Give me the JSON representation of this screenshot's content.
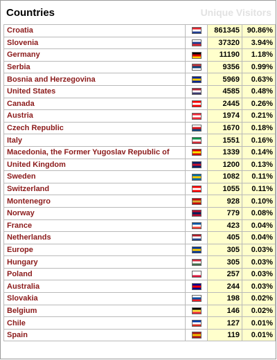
{
  "header": {
    "title": "Countries",
    "right_label": "Unique Visitors"
  },
  "rows": [
    {
      "country": "Croatia",
      "visitors": "861345",
      "percent": "90.86%",
      "flag_icon": "croatia-flag-icon",
      "flag_colors": [
        "#e0262f",
        "#ffffff",
        "#1f3c8f"
      ]
    },
    {
      "country": "Slovenia",
      "visitors": "37320",
      "percent": "3.94%",
      "flag_icon": "slovenia-flag-icon",
      "flag_colors": [
        "#ffffff",
        "#1f3c8f",
        "#e0262f"
      ]
    },
    {
      "country": "Germany",
      "visitors": "11190",
      "percent": "1.18%",
      "flag_icon": "germany-flag-icon",
      "flag_colors": [
        "#000000",
        "#dd0000",
        "#ffce00"
      ]
    },
    {
      "country": "Serbia",
      "visitors": "9356",
      "percent": "0.99%",
      "flag_icon": "serbia-flag-icon",
      "flag_colors": [
        "#c6363c",
        "#0c4076",
        "#ffffff"
      ]
    },
    {
      "country": "Bosnia and Herzegovina",
      "visitors": "5969",
      "percent": "0.63%",
      "flag_icon": "bosnia-flag-icon",
      "flag_colors": [
        "#002395",
        "#fecb00",
        "#002395"
      ]
    },
    {
      "country": "United States",
      "visitors": "4585",
      "percent": "0.48%",
      "flag_icon": "usa-flag-icon",
      "flag_colors": [
        "#b22234",
        "#ffffff",
        "#3c3b6e"
      ]
    },
    {
      "country": "Canada",
      "visitors": "2445",
      "percent": "0.26%",
      "flag_icon": "canada-flag-icon",
      "flag_colors": [
        "#ff0000",
        "#ffffff",
        "#ff0000"
      ]
    },
    {
      "country": "Austria",
      "visitors": "1974",
      "percent": "0.21%",
      "flag_icon": "austria-flag-icon",
      "flag_colors": [
        "#ed2939",
        "#ffffff",
        "#ed2939"
      ]
    },
    {
      "country": "Czech Republic",
      "visitors": "1670",
      "percent": "0.18%",
      "flag_icon": "czech-flag-icon",
      "flag_colors": [
        "#ffffff",
        "#d7141a",
        "#11457e"
      ]
    },
    {
      "country": "Italy",
      "visitors": "1551",
      "percent": "0.16%",
      "flag_icon": "italy-flag-icon",
      "flag_colors": [
        "#009246",
        "#ffffff",
        "#ce2b37"
      ]
    },
    {
      "country": "Macedonia, the Former Yugoslav Republic of",
      "visitors": "1339",
      "percent": "0.14%",
      "flag_icon": "macedonia-flag-icon",
      "flag_colors": [
        "#d20000",
        "#ffe600",
        "#d20000"
      ]
    },
    {
      "country": "United Kingdom",
      "visitors": "1200",
      "percent": "0.13%",
      "flag_icon": "uk-flag-icon",
      "flag_colors": [
        "#012169",
        "#c8102e",
        "#012169"
      ]
    },
    {
      "country": "Sweden",
      "visitors": "1082",
      "percent": "0.11%",
      "flag_icon": "sweden-flag-icon",
      "flag_colors": [
        "#006aa7",
        "#fecc00",
        "#006aa7"
      ]
    },
    {
      "country": "Switzerland",
      "visitors": "1055",
      "percent": "0.11%",
      "flag_icon": "switzerland-flag-icon",
      "flag_colors": [
        "#ff0000",
        "#ffffff",
        "#ff0000"
      ]
    },
    {
      "country": "Montenegro",
      "visitors": "928",
      "percent": "0.10%",
      "flag_icon": "montenegro-flag-icon",
      "flag_colors": [
        "#c40308",
        "#d4af37",
        "#c40308"
      ]
    },
    {
      "country": "Norway",
      "visitors": "779",
      "percent": "0.08%",
      "flag_icon": "norway-flag-icon",
      "flag_colors": [
        "#ba0c2f",
        "#00205b",
        "#ba0c2f"
      ]
    },
    {
      "country": "France",
      "visitors": "423",
      "percent": "0.04%",
      "flag_icon": "france-flag-icon",
      "flag_colors": [
        "#0055a4",
        "#ffffff",
        "#ef4135"
      ]
    },
    {
      "country": "Netherlands",
      "visitors": "405",
      "percent": "0.04%",
      "flag_icon": "netherlands-flag-icon",
      "flag_colors": [
        "#ae1c28",
        "#ffffff",
        "#21468b"
      ]
    },
    {
      "country": "Europe",
      "visitors": "305",
      "percent": "0.03%",
      "flag_icon": "europe-flag-icon",
      "flag_colors": [
        "#003399",
        "#ffcc00",
        "#003399"
      ]
    },
    {
      "country": "Hungary",
      "visitors": "305",
      "percent": "0.03%",
      "flag_icon": "hungary-flag-icon",
      "flag_colors": [
        "#cd2a3e",
        "#ffffff",
        "#436f4d"
      ]
    },
    {
      "country": "Poland",
      "visitors": "257",
      "percent": "0.03%",
      "flag_icon": "poland-flag-icon",
      "flag_colors": [
        "#ffffff",
        "#ffffff",
        "#dc143c"
      ]
    },
    {
      "country": "Australia",
      "visitors": "244",
      "percent": "0.03%",
      "flag_icon": "australia-flag-icon",
      "flag_colors": [
        "#00008b",
        "#ff0000",
        "#00008b"
      ]
    },
    {
      "country": "Slovakia",
      "visitors": "198",
      "percent": "0.02%",
      "flag_icon": "slovakia-flag-icon",
      "flag_colors": [
        "#ffffff",
        "#0b4ea2",
        "#ee1c25"
      ]
    },
    {
      "country": "Belgium",
      "visitors": "146",
      "percent": "0.02%",
      "flag_icon": "belgium-flag-icon",
      "flag_colors": [
        "#000000",
        "#fae042",
        "#ed2939"
      ]
    },
    {
      "country": "Chile",
      "visitors": "127",
      "percent": "0.01%",
      "flag_icon": "chile-flag-icon",
      "flag_colors": [
        "#0039a6",
        "#ffffff",
        "#d52b1e"
      ]
    },
    {
      "country": "Spain",
      "visitors": "119",
      "percent": "0.01%",
      "flag_icon": "spain-flag-icon",
      "flag_colors": [
        "#aa151b",
        "#f1bf00",
        "#aa151b"
      ]
    }
  ]
}
